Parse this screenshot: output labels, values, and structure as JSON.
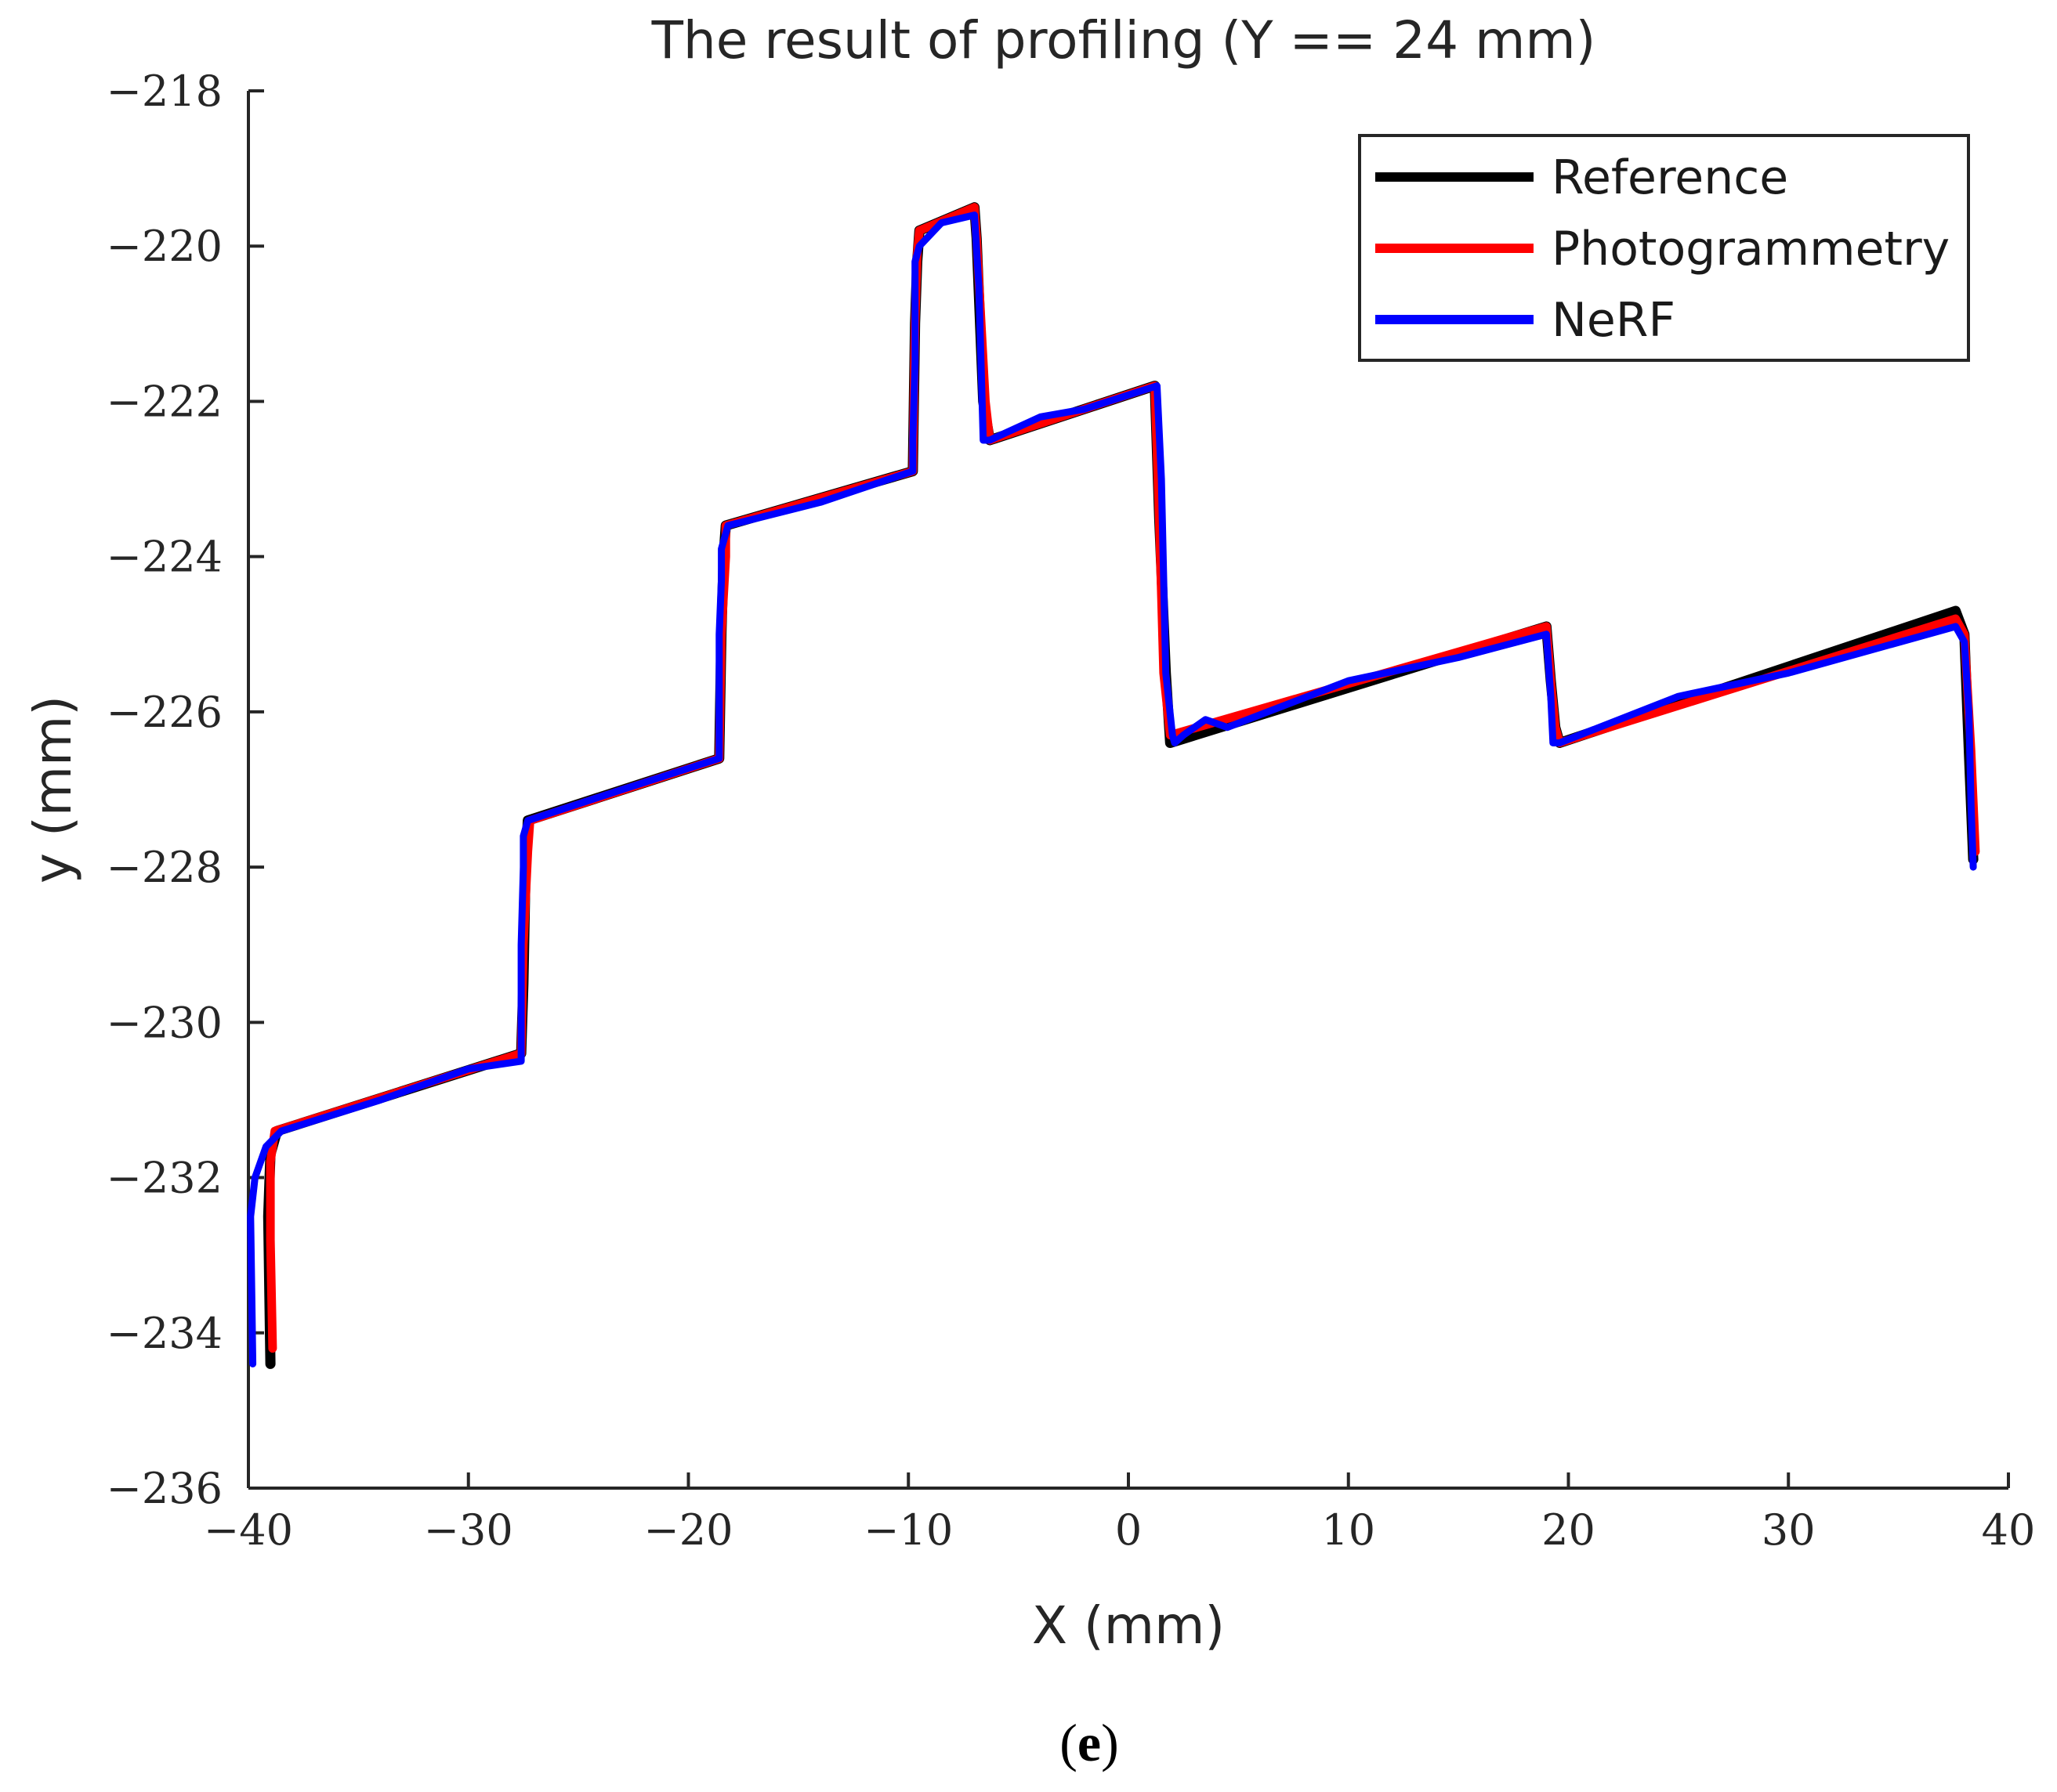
{
  "chart_data": {
    "type": "line",
    "title": "The result of profiling (Y == 24 mm)",
    "xlabel": "X (mm)",
    "ylabel": "y (mm)",
    "xlim": [
      -40,
      40
    ],
    "ylim": [
      -236,
      -218
    ],
    "x_ticks": [
      -40,
      -30,
      -20,
      -10,
      0,
      10,
      20,
      30,
      40
    ],
    "x_tick_labels": [
      "−40",
      "−30",
      "−20",
      "−10",
      "0",
      "10",
      "20",
      "30",
      "40"
    ],
    "y_ticks": [
      -218,
      -220,
      -222,
      -224,
      -226,
      -228,
      -230,
      -232,
      -234,
      -236
    ],
    "y_tick_labels": [
      "−218",
      "−220",
      "−222",
      "−224",
      "−226",
      "−228",
      "−230",
      "−232",
      "−234",
      "−236"
    ],
    "grid": false,
    "legend_position": "top-right",
    "series": [
      {
        "name": "Reference",
        "color": "#000000",
        "x": [
          -39.0,
          -39.1,
          -39.0,
          -38.7,
          -27.6,
          -27.5,
          -27.4,
          -27.3,
          -18.6,
          -18.5,
          -18.4,
          -18.3,
          -9.8,
          -9.7,
          -9.6,
          -9.5,
          -7.0,
          -6.9,
          -6.6,
          -6.3,
          1.2,
          1.4,
          1.7,
          1.9,
          19.0,
          19.2,
          19.4,
          19.6,
          37.6,
          38.0,
          38.2,
          38.4
        ],
        "y": [
          -234.4,
          -232.5,
          -231.7,
          -231.4,
          -230.4,
          -229.5,
          -228.0,
          -227.4,
          -226.6,
          -225.0,
          -224.0,
          -223.6,
          -222.9,
          -221.0,
          -220.2,
          -219.8,
          -219.5,
          -219.9,
          -222.0,
          -222.5,
          -221.8,
          -223.5,
          -225.5,
          -226.4,
          -224.9,
          -225.6,
          -226.2,
          -226.4,
          -224.7,
          -225.0,
          -226.5,
          -227.9
        ]
      },
      {
        "name": "Photogrammetry",
        "color": "#ff0000",
        "x": [
          -38.9,
          -39.0,
          -39.0,
          -38.8,
          -27.6,
          -27.5,
          -27.3,
          -27.2,
          -18.6,
          -18.5,
          -18.3,
          -18.3,
          -9.8,
          -9.7,
          -9.6,
          -9.5,
          -7.0,
          -6.9,
          -6.5,
          -6.3,
          1.2,
          1.4,
          1.6,
          1.9,
          19.0,
          19.2,
          19.4,
          19.6,
          37.6,
          38.0,
          38.3,
          38.5
        ],
        "y": [
          -234.2,
          -232.8,
          -231.8,
          -231.4,
          -230.4,
          -229.0,
          -227.8,
          -227.4,
          -226.6,
          -225.0,
          -224.0,
          -223.6,
          -222.9,
          -221.0,
          -220.1,
          -219.8,
          -219.5,
          -219.9,
          -222.0,
          -222.5,
          -221.8,
          -223.5,
          -225.5,
          -226.3,
          -224.9,
          -225.6,
          -226.2,
          -226.4,
          -224.8,
          -225.0,
          -226.5,
          -227.8
        ]
      },
      {
        "name": "NeRF",
        "color": "#0000ff",
        "x": [
          -39.8,
          -39.9,
          -39.7,
          -39.2,
          -38.5,
          -34.0,
          -30.0,
          -27.6,
          -27.6,
          -27.5,
          -27.5,
          -27.3,
          -23.0,
          -18.6,
          -18.6,
          -18.5,
          -18.5,
          -18.2,
          -14.0,
          -9.8,
          -9.8,
          -9.7,
          -9.7,
          -9.5,
          -8.5,
          -7.0,
          -6.8,
          -6.6,
          -6.3,
          -4.0,
          -2.0,
          1.3,
          1.5,
          1.7,
          2.0,
          2.1,
          2.5,
          3.5,
          4.5,
          10.0,
          15.0,
          19.0,
          19.2,
          19.3,
          19.6,
          25.0,
          30.0,
          37.6,
          38.0,
          38.2,
          38.3,
          38.4
        ],
        "y": [
          -234.4,
          -232.5,
          -232.0,
          -231.6,
          -231.4,
          -231.0,
          -230.6,
          -230.5,
          -229.0,
          -228.0,
          -227.6,
          -227.4,
          -227.0,
          -226.6,
          -225.0,
          -224.3,
          -223.9,
          -223.6,
          -223.3,
          -222.9,
          -222.5,
          -221.5,
          -220.2,
          -220.0,
          -219.7,
          -219.6,
          -220.5,
          -222.5,
          -222.5,
          -222.2,
          -222.1,
          -221.8,
          -223.0,
          -225.5,
          -226.3,
          -226.4,
          -226.3,
          -226.1,
          -226.2,
          -225.6,
          -225.3,
          -225.0,
          -225.8,
          -226.4,
          -226.4,
          -225.8,
          -225.5,
          -224.9,
          -225.1,
          -226.0,
          -227.2,
          -228.0
        ]
      }
    ]
  },
  "panel_label": {
    "open": "(",
    "letter": "e",
    "close": ")"
  }
}
